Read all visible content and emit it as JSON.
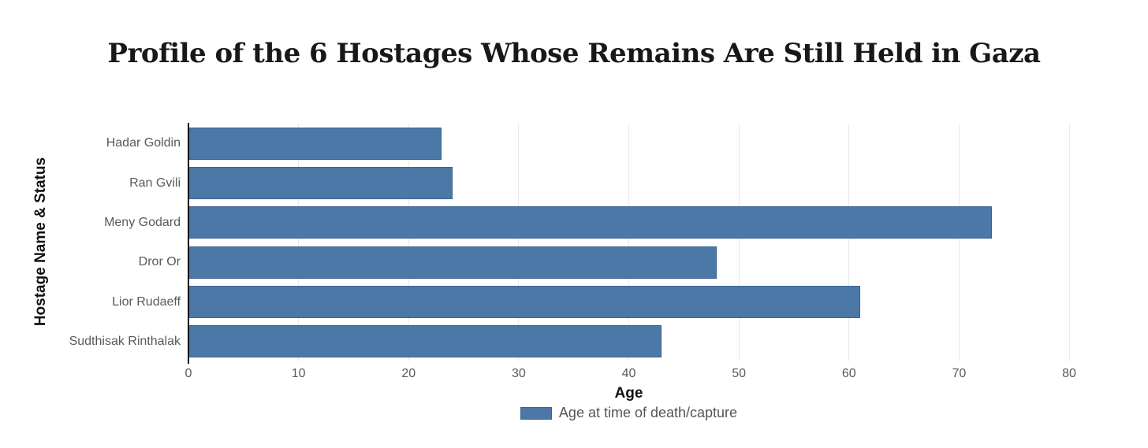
{
  "chart_data": {
    "type": "bar",
    "orientation": "horizontal",
    "title": "Profile of the 6 Hostages Whose Remains Are Still Held in Gaza",
    "categories": [
      "Hadar Goldin",
      "Ran Gvili",
      "Meny Godard",
      "Dror Or",
      "Lior Rudaeff",
      "Sudthisak Rinthalak"
    ],
    "series": [
      {
        "name": "Age at time of death/capture",
        "values": [
          23,
          24,
          73,
          48,
          61,
          43
        ]
      }
    ],
    "xlabel": "Age",
    "ylabel": "Hostage Name & Status",
    "xlim": [
      0,
      80
    ],
    "xticks": [
      0,
      10,
      20,
      30,
      40,
      50,
      60,
      70,
      80
    ],
    "grid": true,
    "legend_position": "bottom",
    "colors": {
      "bar_fill": "#4c78a8",
      "bar_border": "#3b6490",
      "gridline": "#e9e9eb",
      "axis_line": "#111111",
      "tick_label": "#595959",
      "title_text": "#181818"
    }
  },
  "legend": {
    "label": "Age at time of death/capture"
  }
}
